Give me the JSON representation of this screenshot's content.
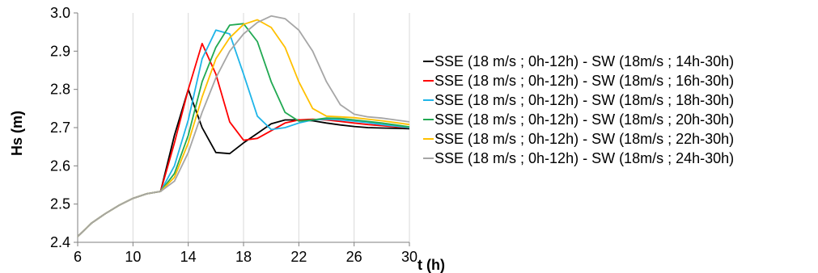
{
  "chart_data": {
    "type": "line",
    "xlabel": "t (h)",
    "ylabel": "Hs (m)",
    "xlim": [
      6,
      30
    ],
    "ylim": [
      2.4,
      3.0
    ],
    "xticks": [
      "6",
      "10",
      "14",
      "18",
      "22",
      "26",
      "30"
    ],
    "yticks": [
      "2.4",
      "2.5",
      "2.6",
      "2.7",
      "2.8",
      "2.9",
      "3.0"
    ],
    "grid": "vertical",
    "legend_position": "right",
    "x": [
      6,
      7,
      8,
      9,
      10,
      11,
      12,
      13,
      14,
      15,
      16,
      17,
      18,
      19,
      20,
      21,
      22,
      23,
      24,
      25,
      26,
      27,
      28,
      29,
      30
    ],
    "series": [
      {
        "name": "SSE (18 m/s ; 0h-12h) - SW (18m/s ; 14h-30h)",
        "color": "#000000",
        "values": [
          2.415,
          2.45,
          2.475,
          2.497,
          2.515,
          2.527,
          2.533,
          2.68,
          2.8,
          2.7,
          2.635,
          2.632,
          2.66,
          2.685,
          2.71,
          2.72,
          2.72,
          2.718,
          2.712,
          2.707,
          2.703,
          2.7,
          2.699,
          2.698,
          2.697
        ]
      },
      {
        "name": "SSE (18 m/s ; 0h-12h) - SW (18m/s ; 16h-30h)",
        "color": "#ff0000",
        "values": [
          2.415,
          2.45,
          2.475,
          2.497,
          2.515,
          2.527,
          2.533,
          2.66,
          2.8,
          2.92,
          2.84,
          2.715,
          2.667,
          2.672,
          2.692,
          2.712,
          2.72,
          2.722,
          2.72,
          2.716,
          2.712,
          2.708,
          2.705,
          2.702,
          2.7
        ]
      },
      {
        "name": "SSE (18 m/s ; 0h-12h) - SW (18m/s ; 18h-30h)",
        "color": "#1fb5e8",
        "values": [
          2.415,
          2.45,
          2.475,
          2.497,
          2.515,
          2.527,
          2.533,
          2.6,
          2.72,
          2.88,
          2.955,
          2.945,
          2.84,
          2.73,
          2.695,
          2.7,
          2.712,
          2.72,
          2.722,
          2.72,
          2.717,
          2.713,
          2.708,
          2.704,
          2.7
        ]
      },
      {
        "name": "SSE (18 m/s ; 0h-12h) - SW (18m/s ; 20h-30h)",
        "color": "#21a952",
        "values": [
          2.415,
          2.45,
          2.475,
          2.497,
          2.515,
          2.527,
          2.533,
          2.58,
          2.68,
          2.82,
          2.91,
          2.968,
          2.972,
          2.925,
          2.82,
          2.74,
          2.717,
          2.72,
          2.725,
          2.724,
          2.72,
          2.716,
          2.712,
          2.707,
          2.702
        ]
      },
      {
        "name": "SSE (18 m/s ; 0h-12h) - SW (18m/s ; 22h-30h)",
        "color": "#ffc000",
        "values": [
          2.415,
          2.45,
          2.475,
          2.497,
          2.515,
          2.527,
          2.533,
          2.57,
          2.66,
          2.78,
          2.88,
          2.935,
          2.97,
          2.982,
          2.962,
          2.91,
          2.82,
          2.75,
          2.73,
          2.728,
          2.726,
          2.722,
          2.718,
          2.713,
          2.708
        ]
      },
      {
        "name": "SSE (18 m/s ; 0h-12h) - SW (18m/s ; 24h-30h)",
        "color": "#a6a6a6",
        "values": [
          2.415,
          2.45,
          2.475,
          2.497,
          2.515,
          2.527,
          2.533,
          2.56,
          2.635,
          2.74,
          2.83,
          2.9,
          2.945,
          2.975,
          2.992,
          2.985,
          2.955,
          2.9,
          2.82,
          2.76,
          2.735,
          2.728,
          2.725,
          2.72,
          2.715
        ]
      }
    ]
  }
}
